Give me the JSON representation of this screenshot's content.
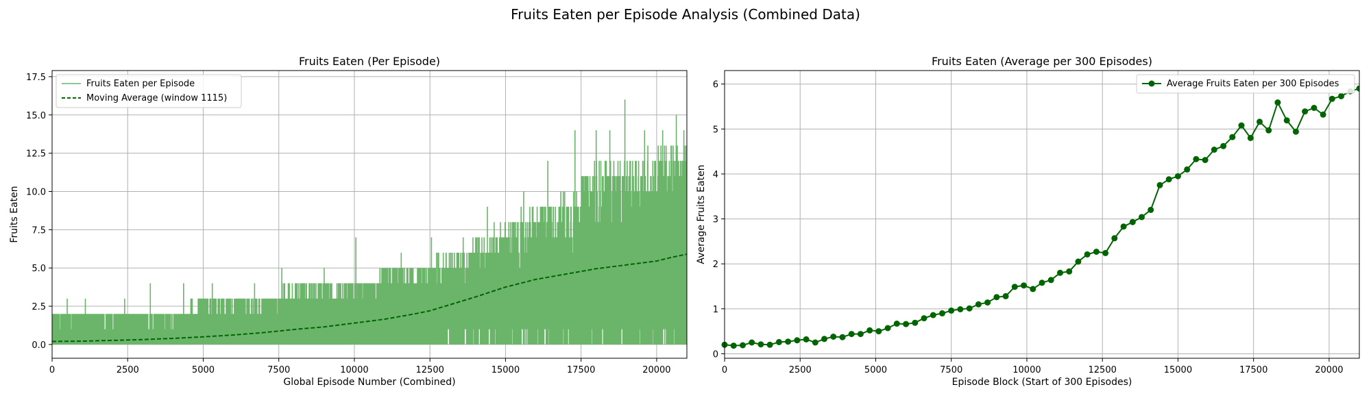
{
  "figure": {
    "title": "Fruits Eaten per Episode Analysis (Combined Data)"
  },
  "colors": {
    "raw_series": "#6ab56a",
    "moving_average": "#006400",
    "block_average": "#006400"
  },
  "chart_data": [
    {
      "type": "line",
      "title": "Fruits Eaten (Per Episode)",
      "xlabel": "Global Episode Number (Combined)",
      "ylabel": "Fruits Eaten",
      "xlim": [
        0,
        21000
      ],
      "ylim": [
        -0.9,
        17.9
      ],
      "xticks": [
        0,
        2500,
        5000,
        7500,
        10000,
        12500,
        15000,
        17500,
        20000
      ],
      "xtick_labels": [
        "0",
        "2500",
        "5000",
        "7500",
        "10000",
        "12500",
        "15000",
        "17500",
        "20000"
      ],
      "yticks": [
        0,
        2.5,
        5,
        7.5,
        10,
        12.5,
        15,
        17.5
      ],
      "ytick_labels": [
        "0.0",
        "2.5",
        "5.0",
        "7.5",
        "10.0",
        "12.5",
        "15.0",
        "17.5"
      ],
      "grid": true,
      "legend_position": "upper-left",
      "series": [
        {
          "name": "Fruits Eaten per Episode",
          "style": "solid-noisy",
          "x": [
            0,
            1000,
            2000,
            3000,
            4000,
            5000,
            6000,
            7000,
            8000,
            9000,
            10000,
            11000,
            12000,
            13000,
            14000,
            15000,
            16000,
            17000,
            18000,
            19000,
            20000,
            21000
          ],
          "min": [
            0,
            0,
            0,
            0,
            0,
            0,
            0,
            0,
            0,
            0,
            0,
            0,
            0,
            0,
            0,
            0,
            0,
            0,
            0,
            0,
            0,
            0
          ],
          "max": [
            2,
            2,
            2,
            2,
            2,
            3,
            3,
            3,
            4,
            4,
            4,
            5,
            5,
            6,
            7,
            8,
            9,
            10,
            12,
            12,
            13,
            13
          ],
          "peaks": [
            {
              "x": 500,
              "y": 3
            },
            {
              "x": 1100,
              "y": 3
            },
            {
              "x": 2400,
              "y": 3
            },
            {
              "x": 3250,
              "y": 4
            },
            {
              "x": 4350,
              "y": 4
            },
            {
              "x": 5300,
              "y": 4
            },
            {
              "x": 6700,
              "y": 4
            },
            {
              "x": 7600,
              "y": 5
            },
            {
              "x": 9000,
              "y": 5
            },
            {
              "x": 10050,
              "y": 7
            },
            {
              "x": 11550,
              "y": 6
            },
            {
              "x": 12550,
              "y": 7
            },
            {
              "x": 13600,
              "y": 7
            },
            {
              "x": 14400,
              "y": 9
            },
            {
              "x": 15600,
              "y": 10
            },
            {
              "x": 16400,
              "y": 12
            },
            {
              "x": 17300,
              "y": 14
            },
            {
              "x": 18000,
              "y": 14
            },
            {
              "x": 18450,
              "y": 14
            },
            {
              "x": 18950,
              "y": 16
            },
            {
              "x": 19600,
              "y": 14
            },
            {
              "x": 20200,
              "y": 14
            },
            {
              "x": 20650,
              "y": 15
            },
            {
              "x": 20900,
              "y": 14
            }
          ]
        },
        {
          "name": "Moving Average (window 1115)",
          "style": "dashed",
          "x": [
            0,
            1000,
            2000,
            3000,
            4000,
            5000,
            6000,
            7000,
            8000,
            9000,
            10000,
            11000,
            12000,
            12500,
            13000,
            14000,
            15000,
            16000,
            17000,
            18000,
            19000,
            20000,
            20500,
            21000
          ],
          "y": [
            0.2,
            0.22,
            0.27,
            0.32,
            0.4,
            0.5,
            0.62,
            0.78,
            0.98,
            1.15,
            1.4,
            1.65,
            2.0,
            2.2,
            2.5,
            3.1,
            3.75,
            4.25,
            4.6,
            4.95,
            5.2,
            5.45,
            5.7,
            5.9
          ]
        }
      ]
    },
    {
      "type": "line",
      "title": "Fruits Eaten (Average per 300 Episodes)",
      "xlabel": "Episode Block (Start of 300 Episodes)",
      "ylabel": "Average Fruits Eaten",
      "xlim": [
        0,
        21000
      ],
      "ylim": [
        -0.1,
        6.3
      ],
      "xticks": [
        0,
        2500,
        5000,
        7500,
        10000,
        12500,
        15000,
        17500,
        20000
      ],
      "xtick_labels": [
        "0",
        "2500",
        "5000",
        "7500",
        "10000",
        "12500",
        "15000",
        "17500",
        "20000"
      ],
      "yticks": [
        0,
        1,
        2,
        3,
        4,
        5,
        6
      ],
      "ytick_labels": [
        "0",
        "1",
        "2",
        "3",
        "4",
        "5",
        "6"
      ],
      "grid": true,
      "legend_position": "upper-right",
      "series": [
        {
          "name": "Average Fruits Eaten per 300 Episodes",
          "style": "line-markers",
          "x": [
            0,
            300,
            600,
            900,
            1200,
            1500,
            1800,
            2100,
            2400,
            2700,
            3000,
            3300,
            3600,
            3900,
            4200,
            4500,
            4800,
            5100,
            5400,
            5700,
            6000,
            6300,
            6600,
            6900,
            7200,
            7500,
            7800,
            8100,
            8400,
            8700,
            9000,
            9300,
            9600,
            9900,
            10200,
            10500,
            10800,
            11100,
            11400,
            11700,
            12000,
            12300,
            12600,
            12900,
            13200,
            13500,
            13800,
            14100,
            14400,
            14700,
            15000,
            15300,
            15600,
            15900,
            16200,
            16500,
            16800,
            17100,
            17400,
            17700,
            18000,
            18300,
            18600,
            18900,
            19200,
            19500,
            19800,
            20100,
            20400,
            20700,
            21000
          ],
          "y": [
            0.2,
            0.18,
            0.19,
            0.25,
            0.21,
            0.2,
            0.26,
            0.27,
            0.3,
            0.32,
            0.25,
            0.33,
            0.38,
            0.37,
            0.44,
            0.44,
            0.52,
            0.5,
            0.57,
            0.67,
            0.66,
            0.69,
            0.79,
            0.86,
            0.9,
            0.96,
            0.99,
            1.01,
            1.1,
            1.14,
            1.26,
            1.28,
            1.49,
            1.52,
            1.44,
            1.58,
            1.64,
            1.8,
            1.83,
            2.05,
            2.21,
            2.27,
            2.24,
            2.57,
            2.83,
            2.93,
            3.04,
            3.2,
            3.75,
            3.88,
            3.95,
            4.1,
            4.33,
            4.31,
            4.54,
            4.62,
            4.82,
            5.08,
            4.8,
            5.16,
            4.97,
            5.59,
            5.19,
            4.94,
            5.39,
            5.47,
            5.32,
            5.67,
            5.73,
            5.84,
            5.9
          ]
        }
      ]
    }
  ]
}
